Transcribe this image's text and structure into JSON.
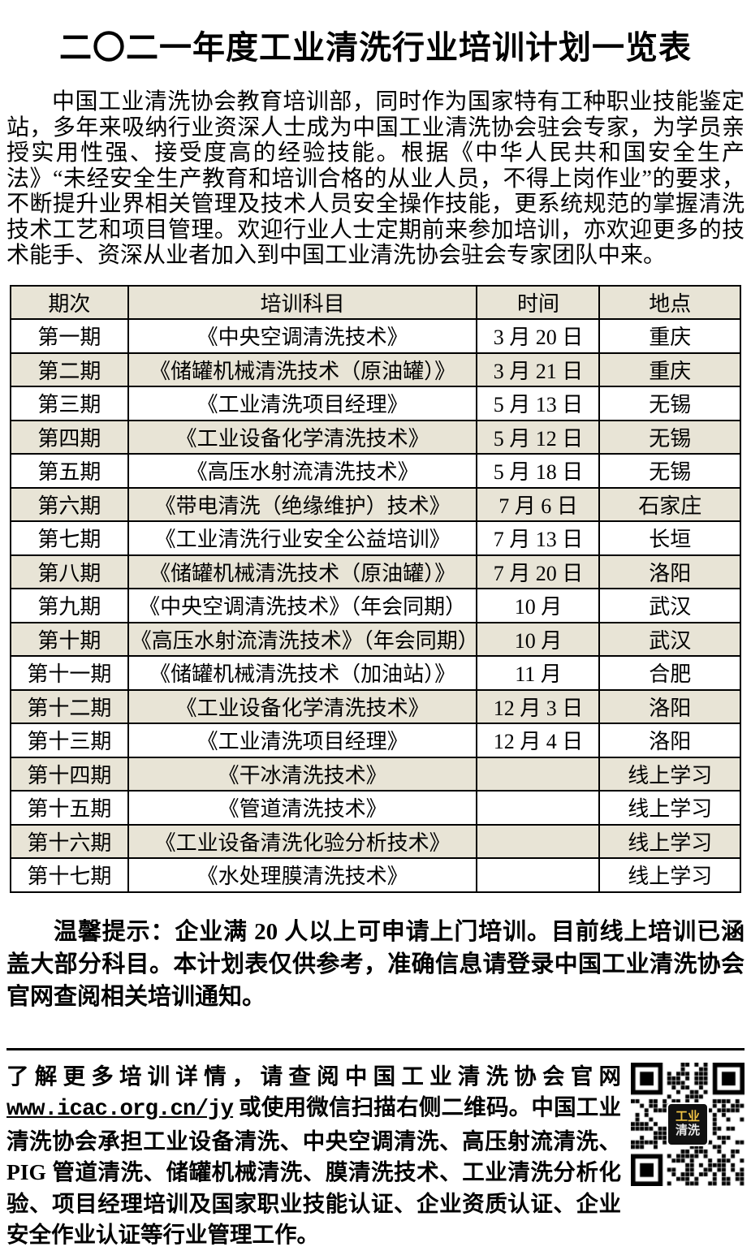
{
  "page": {
    "title": "二〇二一年度工业清洗行业培训计划一览表",
    "intro": "中国工业清洗协会教育培训部，同时作为国家特有工种职业技能鉴定站，多年来吸纳行业资深人士成为中国工业清洗协会驻会专家，为学员亲授实用性强、接受度高的经验技能。根据《中华人民共和国安全生产法》“未经安全生产教育和培训合格的从业人员，不得上岗作业”的要求，不断提升业界相关管理及技术人员安全操作技能，更系统规范的掌握清洗技术工艺和项目管理。欢迎行业人士定期前来参加培训，亦欢迎更多的技术能手、资深从业者加入到中国工业清洗协会驻会专家团队中来。",
    "tip": "温馨提示：企业满 20 人以上可申请上门培训。目前线上培训已涵盖大部分科目。本计划表仅供参考，准确信息请登录中国工业清洗协会官网查阅相关培训通知。"
  },
  "table": {
    "headers": [
      "期次",
      "培训科目",
      "时间",
      "地点"
    ],
    "rows": [
      [
        "第一期",
        "《中央空调清洗技术》",
        "3 月 20 日",
        "重庆"
      ],
      [
        "第二期",
        "《储罐机械清洗技术（原油罐）》",
        "3 月 21 日",
        "重庆"
      ],
      [
        "第三期",
        "《工业清洗项目经理》",
        "5 月 13 日",
        "无锡"
      ],
      [
        "第四期",
        "《工业设备化学清洗技术》",
        "5 月 12 日",
        "无锡"
      ],
      [
        "第五期",
        "《高压水射流清洗技术》",
        "5 月 18 日",
        "无锡"
      ],
      [
        "第六期",
        "《带电清洗（绝缘维护）技术》",
        "7 月 6 日",
        "石家庄"
      ],
      [
        "第七期",
        "《工业清洗行业安全公益培训》",
        "7 月 13 日",
        "长垣"
      ],
      [
        "第八期",
        "《储罐机械清洗技术（原油罐）》",
        "7 月 20 日",
        "洛阳"
      ],
      [
        "第九期",
        "《中央空调清洗技术》（年会同期）",
        "10 月",
        "武汉"
      ],
      [
        "第十期",
        "《高压水射流清洗技术》（年会同期）",
        "10 月",
        "武汉"
      ],
      [
        "第十一期",
        "《储罐机械清洗技术（加油站）》",
        "11 月",
        "合肥"
      ],
      [
        "第十二期",
        "《工业设备化学清洗技术》",
        "12 月 3 日",
        "洛阳"
      ],
      [
        "第十三期",
        "《工业清洗项目经理》",
        "12 月 4 日",
        "洛阳"
      ],
      [
        "第十四期",
        "《干冰清洗技术》",
        "",
        "线上学习"
      ],
      [
        "第十五期",
        "《管道清洗技术》",
        "",
        "线上学习"
      ],
      [
        "第十六期",
        "《工业设备清洗化验分析技术》",
        "",
        "线上学习"
      ],
      [
        "第十七期",
        "《水处理膜清洗技术》",
        "",
        "线上学习"
      ]
    ]
  },
  "footer": {
    "text_before_url": "了解更多培训详情，请查阅中国工业清洗协会官网 ",
    "url": "www.icac.org.cn/jy",
    "text_after_url": " 或使用微信扫描右侧二维码。中国工业清洗协会承担工业设备清洗、中央空调清洗、高压射流清洗、PIG 管道清洗、储罐机械清洗、膜清洗技术、工业清洗分析化验、项目经理培训及国家职业技能认证、企业资质认证、企业安全作业认证等行业管理工作。",
    "qr_label_line1": "工业",
    "qr_label_line2": "清洗"
  },
  "colors": {
    "row_shaded": "#e8e4d6",
    "border": "#000000",
    "qr_logo_gold": "#f0c345"
  }
}
